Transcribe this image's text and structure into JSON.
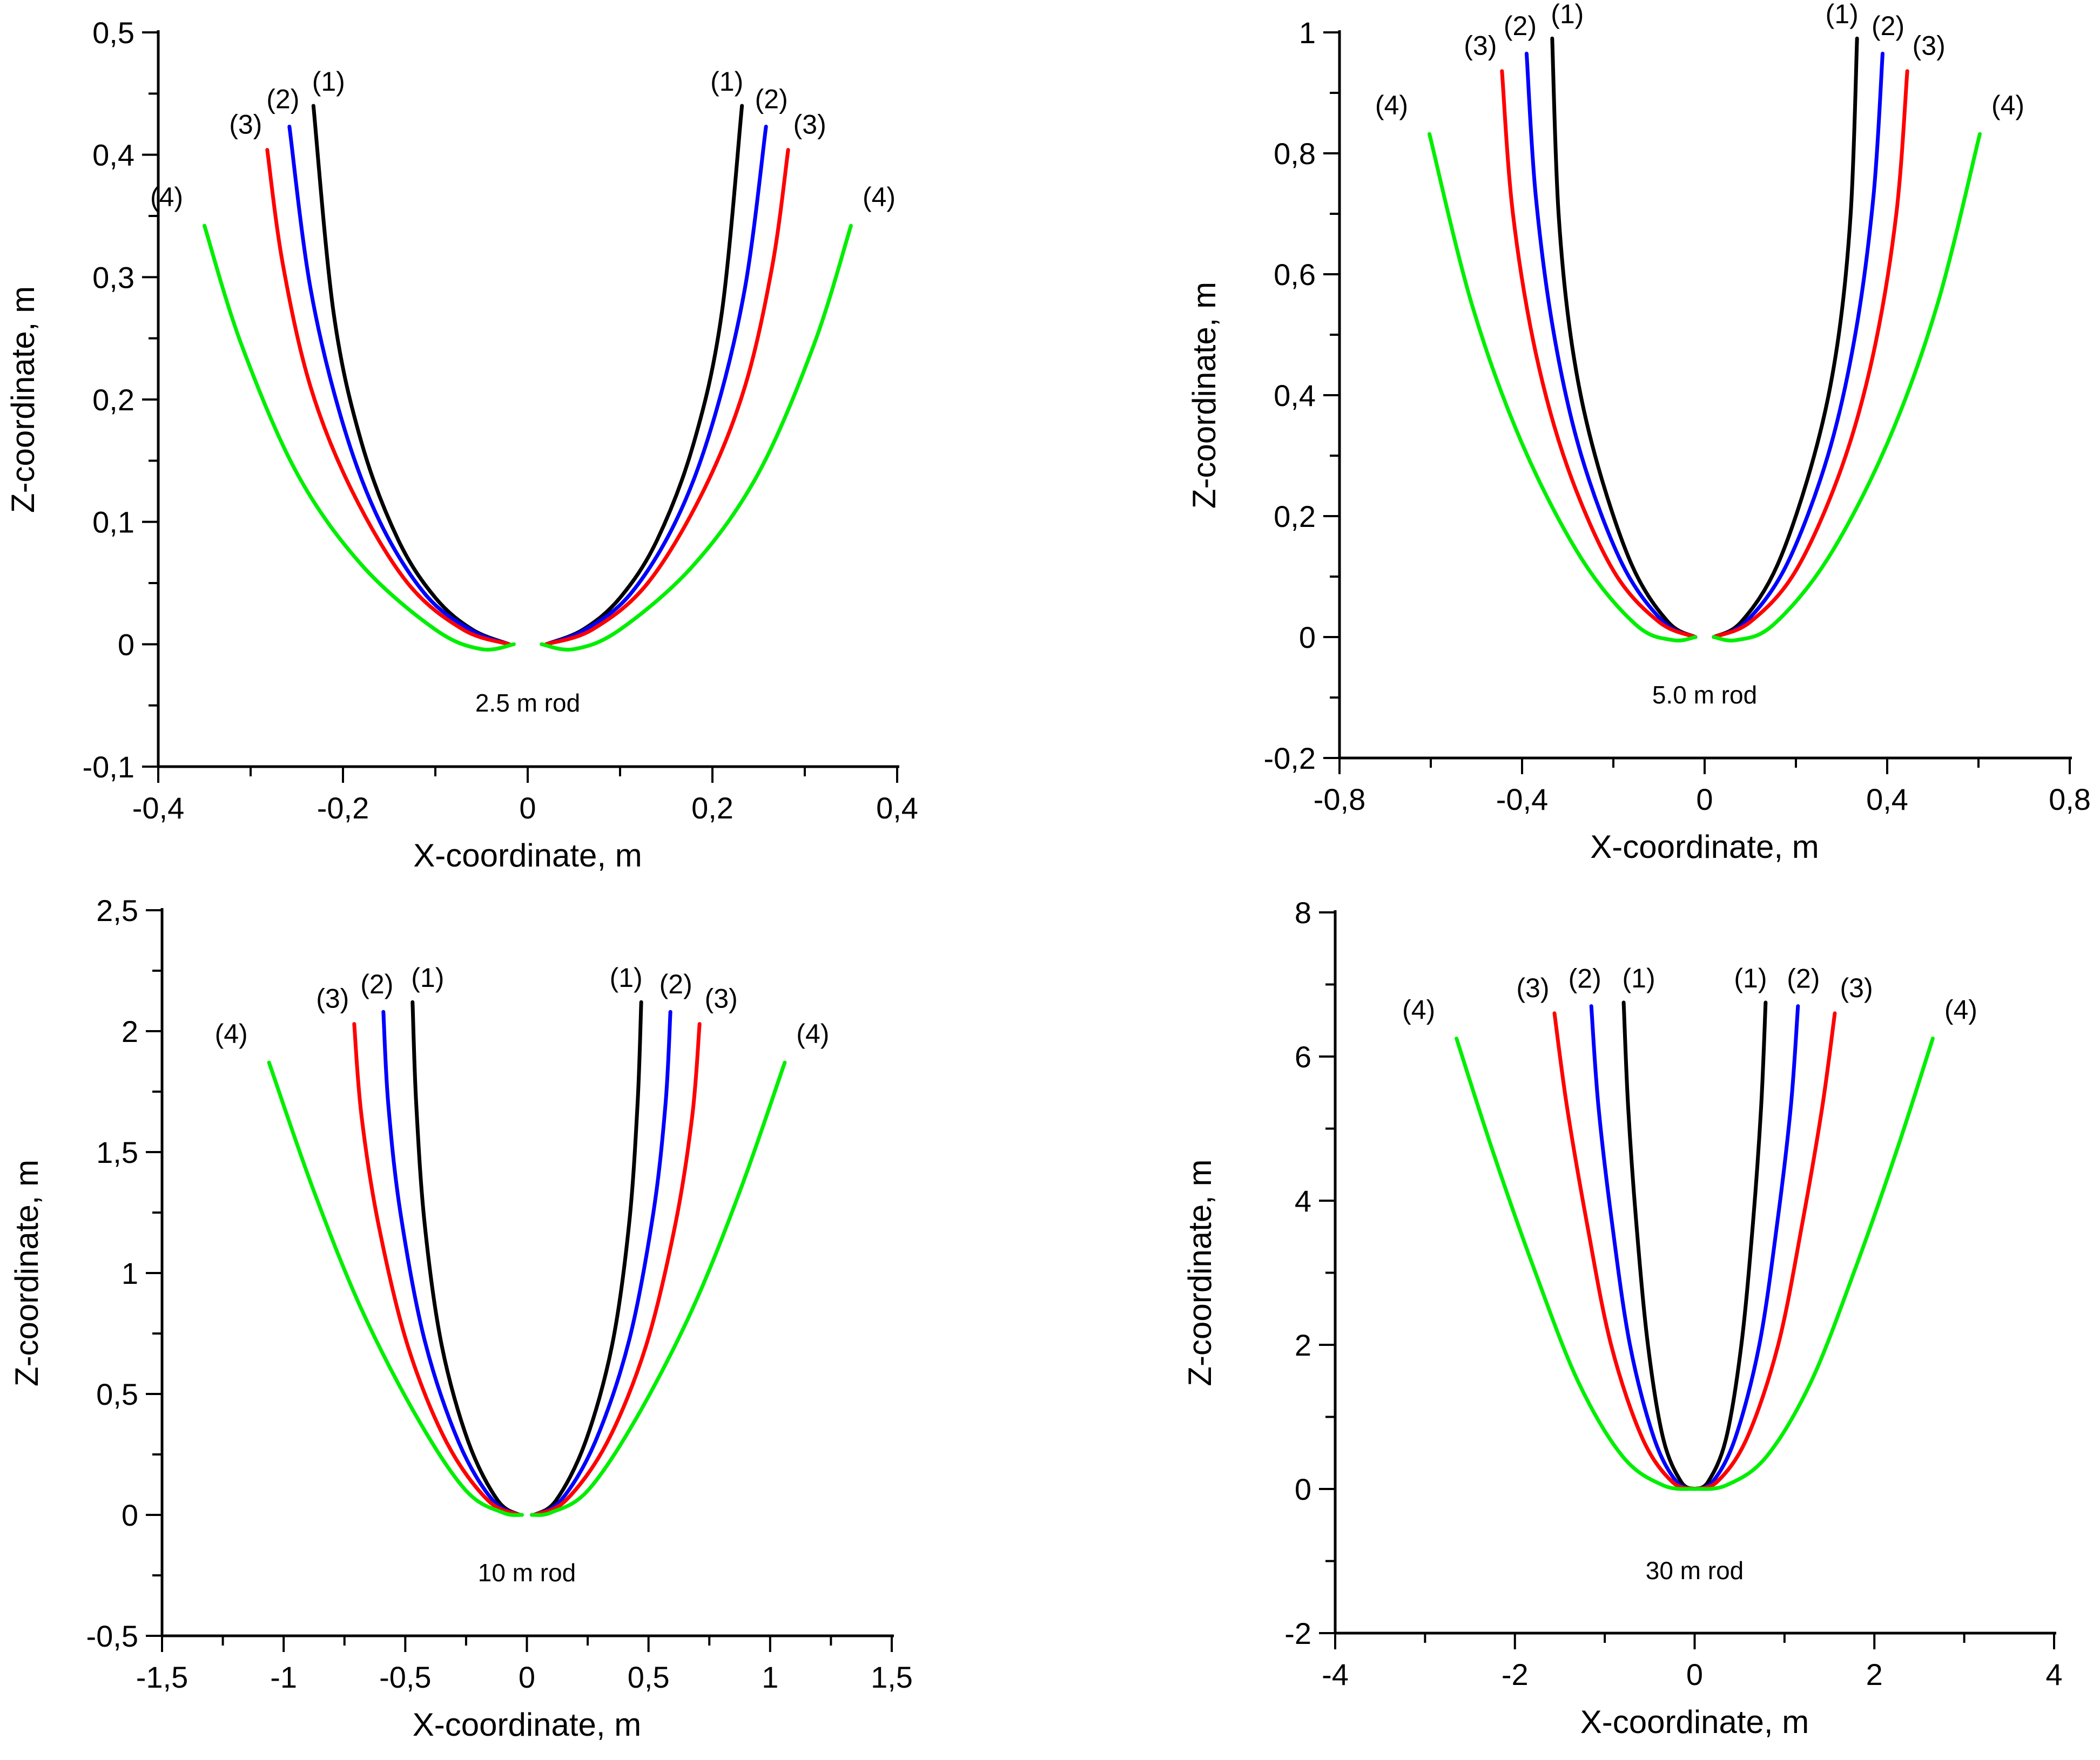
{
  "chart_data": [
    {
      "type": "line",
      "annotation": "2.5 m rod",
      "xlabel": "X-coordinate, m",
      "ylabel": "Z-coordinate, m",
      "xlim": [
        -0.4,
        0.4
      ],
      "ylim": [
        -0.1,
        0.5
      ],
      "x_major_ticks": [
        -0.4,
        -0.2,
        0,
        0.2,
        0.4
      ],
      "x_tick_labels": [
        "-0,4",
        "-0,2",
        "0",
        "0,2",
        "0,4"
      ],
      "y_major_ticks": [
        -0.1,
        0,
        0.1,
        0.2,
        0.3,
        0.4,
        0.5
      ],
      "y_tick_labels": [
        "-0,1",
        "0",
        "0,1",
        "0,2",
        "0,3",
        "0,4",
        "0,5"
      ],
      "grid": false,
      "series": [
        {
          "name": "(1)",
          "color": "#000000",
          "points": [
            [
              0.02,
              0
            ],
            [
              0.06,
              0.012
            ],
            [
              0.1,
              0.038
            ],
            [
              0.14,
              0.085
            ],
            [
              0.18,
              0.165
            ],
            [
              0.21,
              0.27
            ],
            [
              0.232,
              0.44
            ]
          ]
        },
        {
          "name": "(2)",
          "color": "#0000ff",
          "points": [
            [
              0.02,
              0
            ],
            [
              0.06,
              0.011
            ],
            [
              0.11,
              0.04
            ],
            [
              0.16,
              0.1
            ],
            [
              0.2,
              0.18
            ],
            [
              0.235,
              0.29
            ],
            [
              0.258,
              0.423
            ]
          ]
        },
        {
          "name": "(3)",
          "color": "#ff0000",
          "points": [
            [
              0.02,
              0
            ],
            [
              0.07,
              0.012
            ],
            [
              0.13,
              0.05
            ],
            [
              0.19,
              0.125
            ],
            [
              0.235,
              0.21
            ],
            [
              0.265,
              0.31
            ],
            [
              0.282,
              0.404
            ]
          ]
        },
        {
          "name": "(4)",
          "color": "#00ee00",
          "points": [
            [
              0.015,
              0
            ],
            [
              0.05,
              -0.004
            ],
            [
              0.1,
              0.012
            ],
            [
              0.18,
              0.065
            ],
            [
              0.25,
              0.14
            ],
            [
              0.31,
              0.245
            ],
            [
              0.35,
              0.342
            ]
          ]
        }
      ],
      "curve_labels_left": [
        "(3)",
        "(2)",
        "(1)",
        "(4)"
      ],
      "curve_labels_right": [
        "(1)",
        "(2)",
        "(3)",
        "(4)"
      ]
    },
    {
      "type": "line",
      "annotation": "5.0 m rod",
      "xlabel": "X-coordinate, m",
      "ylabel": "Z-coordinate, m",
      "xlim": [
        -0.8,
        0.8
      ],
      "ylim": [
        -0.2,
        1.0
      ],
      "x_major_ticks": [
        -0.8,
        -0.4,
        0,
        0.4,
        0.8
      ],
      "x_tick_labels": [
        "-0,8",
        "-0,4",
        "0",
        "0,4",
        "0,8"
      ],
      "y_major_ticks": [
        -0.2,
        0,
        0.2,
        0.4,
        0.6,
        0.8,
        1.0
      ],
      "y_tick_labels": [
        "-0,2",
        "0",
        "0,2",
        "0,4",
        "0,6",
        "0,8",
        "1"
      ],
      "grid": false,
      "series": [
        {
          "name": "(1)",
          "color": "#000000",
          "points": [
            [
              0.02,
              0
            ],
            [
              0.08,
              0.025
            ],
            [
              0.16,
              0.12
            ],
            [
              0.24,
              0.3
            ],
            [
              0.29,
              0.48
            ],
            [
              0.32,
              0.7
            ],
            [
              0.334,
              0.99
            ]
          ]
        },
        {
          "name": "(2)",
          "color": "#0000ff",
          "points": [
            [
              0.02,
              0
            ],
            [
              0.09,
              0.025
            ],
            [
              0.18,
              0.12
            ],
            [
              0.27,
              0.3
            ],
            [
              0.33,
              0.5
            ],
            [
              0.37,
              0.73
            ],
            [
              0.39,
              0.965
            ]
          ]
        },
        {
          "name": "(3)",
          "color": "#ff0000",
          "points": [
            [
              0.02,
              0
            ],
            [
              0.1,
              0.025
            ],
            [
              0.2,
              0.11
            ],
            [
              0.3,
              0.28
            ],
            [
              0.37,
              0.47
            ],
            [
              0.42,
              0.7
            ],
            [
              0.444,
              0.936
            ]
          ]
        },
        {
          "name": "(4)",
          "color": "#00ee00",
          "points": [
            [
              0.02,
              0
            ],
            [
              0.07,
              -0.005
            ],
            [
              0.15,
              0.02
            ],
            [
              0.27,
              0.13
            ],
            [
              0.4,
              0.32
            ],
            [
              0.51,
              0.55
            ],
            [
              0.603,
              0.832
            ]
          ]
        }
      ],
      "curve_labels_left": [
        "(3)",
        "(2)",
        "(1)",
        "(4)"
      ],
      "curve_labels_right": [
        "(1)",
        "(2)",
        "(3)",
        "(4)"
      ]
    },
    {
      "type": "line",
      "annotation": "10 m rod",
      "xlabel": "X-coordinate, m",
      "ylabel": "Z-coordinate, m",
      "xlim": [
        -1.5,
        1.5
      ],
      "ylim": [
        -0.5,
        2.5
      ],
      "x_major_ticks": [
        -1.5,
        -1,
        -0.5,
        0,
        0.5,
        1,
        1.5
      ],
      "x_tick_labels": [
        "-1,5",
        "-1",
        "-0,5",
        "0",
        "0,5",
        "1",
        "1,5"
      ],
      "y_major_ticks": [
        -0.5,
        0,
        0.5,
        1,
        1.5,
        2,
        2.5
      ],
      "y_tick_labels": [
        "-0,5",
        "0",
        "0,5",
        "1",
        "1,5",
        "2",
        "2,5"
      ],
      "grid": false,
      "series": [
        {
          "name": "(1)",
          "color": "#000000",
          "points": [
            [
              0.03,
              0
            ],
            [
              0.12,
              0.06
            ],
            [
              0.24,
              0.3
            ],
            [
              0.35,
              0.7
            ],
            [
              0.42,
              1.2
            ],
            [
              0.455,
              1.7
            ],
            [
              0.47,
              2.12
            ]
          ]
        },
        {
          "name": "(2)",
          "color": "#0000ff",
          "points": [
            [
              0.03,
              0
            ],
            [
              0.14,
              0.06
            ],
            [
              0.28,
              0.3
            ],
            [
              0.42,
              0.72
            ],
            [
              0.52,
              1.25
            ],
            [
              0.57,
              1.7
            ],
            [
              0.59,
              2.08
            ]
          ]
        },
        {
          "name": "(3)",
          "color": "#ff0000",
          "points": [
            [
              0.03,
              0
            ],
            [
              0.16,
              0.06
            ],
            [
              0.33,
              0.3
            ],
            [
              0.49,
              0.7
            ],
            [
              0.61,
              1.2
            ],
            [
              0.68,
              1.65
            ],
            [
              0.71,
              2.03
            ]
          ]
        },
        {
          "name": "(4)",
          "color": "#00ee00",
          "points": [
            [
              0.02,
              0
            ],
            [
              0.1,
              0.01
            ],
            [
              0.25,
              0.1
            ],
            [
              0.45,
              0.4
            ],
            [
              0.68,
              0.85
            ],
            [
              0.88,
              1.35
            ],
            [
              1.06,
              1.87
            ]
          ]
        }
      ],
      "curve_labels_left": [
        "(3)",
        "(2)",
        "(1)",
        "(4)"
      ],
      "curve_labels_right": [
        "(1)",
        "(2)",
        "(3)",
        "(4)"
      ]
    },
    {
      "type": "line",
      "annotation": "30 m rod",
      "xlabel": "X-coordinate, m",
      "ylabel": "Z-coordinate, m",
      "xlim": [
        -4,
        4
      ],
      "ylim": [
        -2,
        8
      ],
      "x_major_ticks": [
        -4,
        -2,
        0,
        2,
        4
      ],
      "x_tick_labels": [
        "-4",
        "-2",
        "0",
        "2",
        "4"
      ],
      "y_major_ticks": [
        -2,
        0,
        2,
        4,
        6,
        8
      ],
      "y_tick_labels": [
        "-2",
        "0",
        "2",
        "4",
        "6",
        "8"
      ],
      "grid": false,
      "series": [
        {
          "name": "(1)",
          "color": "#000000",
          "points": [
            [
              0,
              0
            ],
            [
              0.15,
              0.1
            ],
            [
              0.35,
              0.7
            ],
            [
              0.52,
              2.0
            ],
            [
              0.65,
              3.7
            ],
            [
              0.74,
              5.3
            ],
            [
              0.79,
              6.75
            ]
          ]
        },
        {
          "name": "(2)",
          "color": "#0000ff",
          "points": [
            [
              0,
              0
            ],
            [
              0.2,
              0.1
            ],
            [
              0.45,
              0.7
            ],
            [
              0.72,
              2.0
            ],
            [
              0.92,
              3.7
            ],
            [
              1.07,
              5.3
            ],
            [
              1.15,
              6.7
            ]
          ]
        },
        {
          "name": "(3)",
          "color": "#ff0000",
          "points": [
            [
              0,
              0
            ],
            [
              0.25,
              0.1
            ],
            [
              0.58,
              0.7
            ],
            [
              0.93,
              2.0
            ],
            [
              1.2,
              3.7
            ],
            [
              1.42,
              5.3
            ],
            [
              1.56,
              6.6
            ]
          ]
        },
        {
          "name": "(4)",
          "color": "#00ee00",
          "points": [
            [
              0,
              0
            ],
            [
              0.35,
              0.05
            ],
            [
              0.8,
              0.45
            ],
            [
              1.3,
              1.5
            ],
            [
              1.8,
              3.1
            ],
            [
              2.25,
              4.7
            ],
            [
              2.65,
              6.25
            ]
          ]
        }
      ],
      "curve_labels_left": [
        "(3)",
        "(2)",
        "(1)",
        "(4)"
      ],
      "curve_labels_right": [
        "(1)",
        "(2)",
        "(3)",
        "(4)"
      ]
    }
  ]
}
